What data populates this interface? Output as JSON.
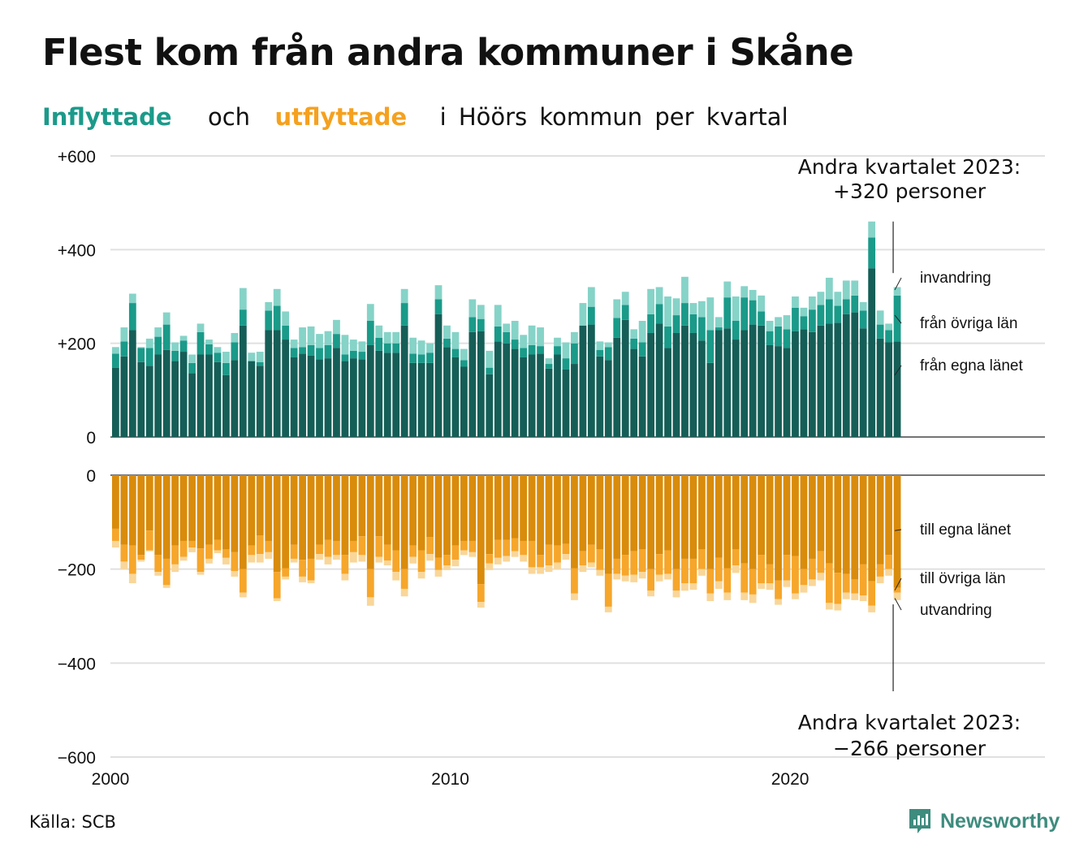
{
  "title": "Flest kom från andra kommuner i Skåne",
  "subtitle": {
    "in_word": "Inflyttade",
    "mid_word": "och",
    "out_word": "utflyttade",
    "rest": "i Höörs kommun per kvartal"
  },
  "source": "Källa: SCB",
  "brand": "Newsworthy",
  "colors": {
    "in_own_county": "#155e57",
    "in_other_counties": "#1a9a89",
    "in_immigration": "#86d3c8",
    "out_own_county": "#d98b0b",
    "out_other_counties": "#f6a62a",
    "out_emigration": "#f9d699",
    "subtitle_in": "#1b9a8a",
    "subtitle_out": "#f5a11f",
    "brand": "#3e8c7e"
  },
  "chart_data": {
    "type": "bar",
    "stacked": true,
    "frequency": "quarterly",
    "x_start": "2000 Q1",
    "x_end": "2023 Q2",
    "x_ticks": [
      "2000",
      "2010",
      "2020"
    ],
    "x_tick_years": [
      2000,
      2010,
      2020
    ],
    "x_range_years": [
      2000,
      2027.5
    ],
    "grid": true,
    "panels": [
      {
        "name": "inflyttade",
        "y_ticks": [
          "+600",
          "+400",
          "+200",
          "0"
        ],
        "y_tick_values": [
          600,
          400,
          200,
          0
        ],
        "ylim": [
          0,
          600
        ],
        "series": [
          {
            "name": "från egna länet",
            "values": [
              148,
              172,
              228,
              160,
              152,
              176,
              186,
              162,
              182,
              136,
              176,
              176,
              160,
              132,
              164,
              238,
              162,
              152,
              228,
              228,
              208,
              170,
              178,
              174,
              166,
              168,
              190,
              162,
              168,
              166,
              196,
              184,
              180,
              180,
              238,
              158,
              158,
              158,
              262,
              192,
              170,
              150,
              224,
              226,
              134,
              204,
              200,
              188,
              170,
              176,
              178,
              146,
              176,
              144,
              156,
              238,
              240,
              172,
              164,
              212,
              250,
              188,
              172,
              222,
              242,
              190,
              222,
              238,
              222,
              206,
              158,
              228,
              232,
              208,
              228,
              240,
              238,
              196,
              194,
              190,
              226,
              230,
              224,
              238,
              242,
              244,
              262,
              266,
              232,
              360,
              210,
              202,
              204
            ],
            "label": "från egna länet"
          },
          {
            "name": "från övriga län",
            "values": [
              30,
              32,
              58,
              30,
              38,
              38,
              54,
              22,
              24,
              22,
              48,
              22,
              20,
              26,
              38,
              34,
              0,
              8,
              42,
              52,
              30,
              20,
              14,
              22,
              24,
              28,
              30,
              14,
              16,
              16,
              52,
              28,
              20,
              20,
              48,
              20,
              18,
              22,
              32,
              18,
              18,
              14,
              32,
              26,
              14,
              32,
              24,
              20,
              20,
              20,
              16,
              10,
              18,
              24,
              44,
              0,
              38,
              14,
              28,
              42,
              32,
              22,
              30,
              40,
              42,
              46,
              38,
              48,
              40,
              50,
              70,
              6,
              66,
              40,
              70,
              52,
              30,
              30,
              42,
              40,
              50,
              28,
              48,
              44,
              52,
              36,
              32,
              36,
              38,
              66,
              30,
              26,
              98
            ],
            "label": "från övriga län"
          },
          {
            "name": "invandring",
            "values": [
              14,
              30,
              20,
              2,
              20,
              20,
              26,
              18,
              10,
              18,
              18,
              10,
              12,
              24,
              20,
              46,
              18,
              22,
              18,
              36,
              30,
              18,
              42,
              40,
              30,
              30,
              30,
              42,
              24,
              22,
              36,
              26,
              24,
              24,
              30,
              34,
              30,
              20,
              30,
              28,
              36,
              24,
              38,
              30,
              36,
              46,
              18,
              40,
              28,
              42,
              40,
              12,
              18,
              34,
              24,
              48,
              42,
              18,
              10,
              40,
              28,
              20,
              46,
              54,
              36,
              64,
              36,
              56,
              24,
              34,
              70,
              22,
              34,
              52,
              24,
              22,
              34,
              22,
              20,
              30,
              24,
              18,
              28,
              28,
              46,
              30,
              40,
              32,
              18,
              34,
              30,
              14,
              18
            ],
            "label": "invandring"
          }
        ]
      },
      {
        "name": "utflyttade",
        "y_ticks": [
          "0",
          "−200",
          "−400",
          "−600"
        ],
        "y_tick_values": [
          0,
          -200,
          -400,
          -600
        ],
        "ylim": [
          -600,
          0
        ],
        "series": [
          {
            "name": "till egna länet",
            "values": [
              -114,
              -148,
              -150,
              -170,
              -118,
              -170,
              -178,
              -150,
              -140,
              -140,
              -156,
              -148,
              -138,
              -158,
              -164,
              -200,
              -150,
              -128,
              -140,
              -206,
              -198,
              -148,
              -180,
              -178,
              -148,
              -138,
              -140,
              -170,
              -140,
              -130,
              -200,
              -130,
              -148,
              -160,
              -200,
              -150,
              -160,
              -132,
              -176,
              -170,
              -150,
              -140,
              -140,
              -232,
              -168,
              -138,
              -138,
              -134,
              -140,
              -140,
              -170,
              -148,
              -150,
              -146,
              -198,
              -162,
              -148,
              -158,
              -210,
              -178,
              -170,
              -162,
              -158,
              -200,
              -168,
              -160,
              -200,
              -178,
              -178,
              -158,
              -200,
              -176,
              -198,
              -158,
              -188,
              -200,
              -170,
              -190,
              -224,
              -170,
              -172,
              -200,
              -178,
              -162,
              -188,
              -208,
              -210,
              -222,
              -190,
              -226,
              -190,
              -170,
              -240
            ],
            "label": "till egna länet"
          },
          {
            "name": "till övriga län",
            "values": [
              -26,
              -36,
              -60,
              -10,
              -42,
              -36,
              -56,
              -40,
              -34,
              -14,
              -50,
              -30,
              -22,
              -18,
              -40,
              -50,
              -20,
              -40,
              -24,
              -56,
              -18,
              -30,
              -36,
              -46,
              -20,
              -36,
              -30,
              -40,
              -24,
              -40,
              -60,
              -44,
              -34,
              -46,
              -42,
              -24,
              -46,
              -36,
              -26,
              -22,
              -30,
              -20,
              -24,
              -38,
              -20,
              -38,
              -34,
              -28,
              -30,
              -56,
              -26,
              -44,
              -36,
              -22,
              -54,
              -30,
              -38,
              -44,
              -70,
              -32,
              -44,
              -50,
              -48,
              -46,
              -44,
              -50,
              -46,
              -52,
              -52,
              -42,
              -52,
              -50,
              -52,
              -34,
              -62,
              -54,
              -60,
              -40,
              -40,
              -54,
              -80,
              -34,
              -44,
              -46,
              -84,
              -66,
              -40,
              -30,
              -66,
              -52,
              -26,
              -30,
              -10
            ],
            "label": "till övriga län"
          },
          {
            "name": "utvandring",
            "values": [
              -14,
              -16,
              -20,
              -4,
              -2,
              -8,
              -6,
              -16,
              -8,
              -10,
              -6,
              -10,
              -6,
              -14,
              -12,
              -10,
              -16,
              -18,
              -14,
              -6,
              -6,
              -8,
              -12,
              -6,
              -12,
              -16,
              -10,
              -14,
              -22,
              -14,
              -18,
              -12,
              -10,
              -18,
              -16,
              -14,
              -14,
              -14,
              -14,
              -10,
              -14,
              -10,
              -10,
              -12,
              -14,
              -14,
              -12,
              -12,
              -14,
              -14,
              -14,
              -14,
              -14,
              -12,
              -14,
              -14,
              -10,
              -12,
              -12,
              -12,
              -12,
              -16,
              -14,
              -12,
              -14,
              -12,
              -14,
              -16,
              -14,
              -14,
              -16,
              -16,
              -16,
              -16,
              -16,
              -18,
              -12,
              -14,
              -12,
              -14,
              -12,
              -16,
              -14,
              -16,
              -14,
              -14,
              -14,
              -14,
              -12,
              -14,
              -14,
              -14,
              -16
            ],
            "label": "utvandring"
          }
        ]
      }
    ],
    "annotations": [
      {
        "line1": "Andra kvartalet 2023:",
        "line2": "+320 personer"
      },
      {
        "line1": "Andra kvartalet 2023:",
        "line2": "−266 personer"
      }
    ]
  }
}
